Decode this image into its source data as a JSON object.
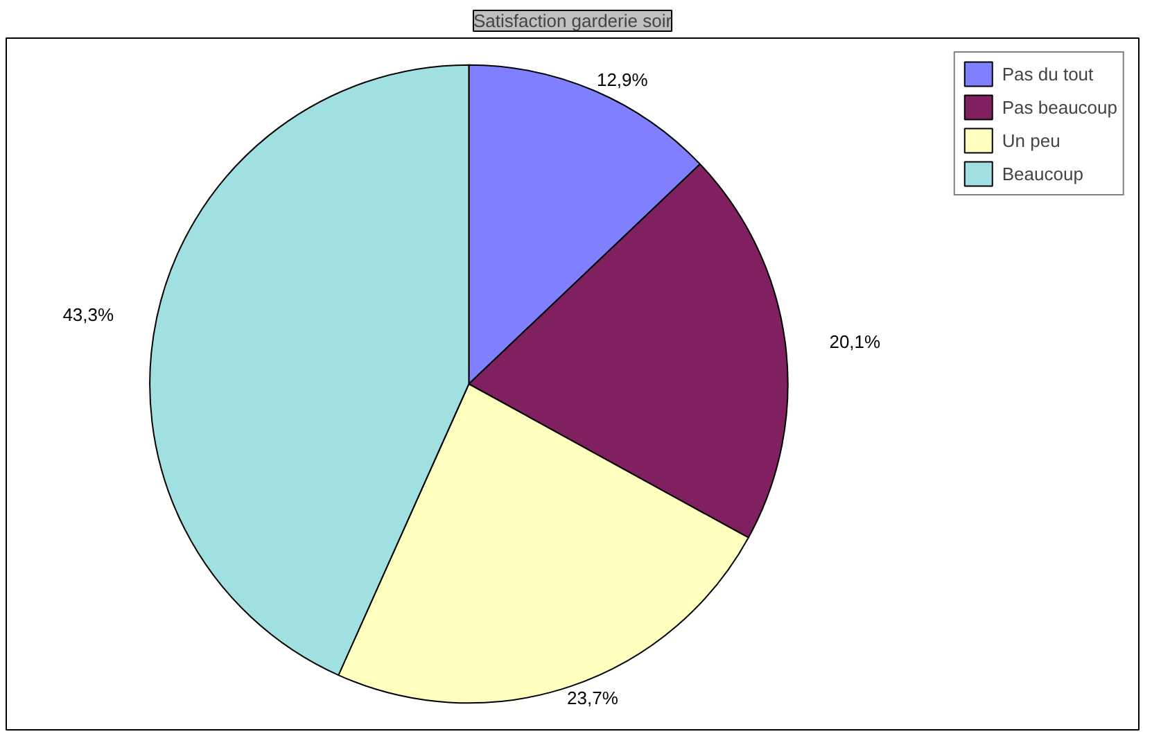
{
  "chart_data": {
    "type": "pie",
    "title": "Satisfaction garderie soir",
    "categories": [
      "Pas du tout",
      "Pas beaucoup",
      "Un peu",
      "Beaucoup"
    ],
    "values": [
      12.9,
      20.1,
      23.7,
      43.3
    ],
    "colors": [
      "#8080ff",
      "#802060",
      "#ffffc0",
      "#a0e0e0"
    ],
    "value_labels": [
      "12,9%",
      "20,1%",
      "23,7%",
      "43,3%"
    ],
    "legend": "right"
  }
}
